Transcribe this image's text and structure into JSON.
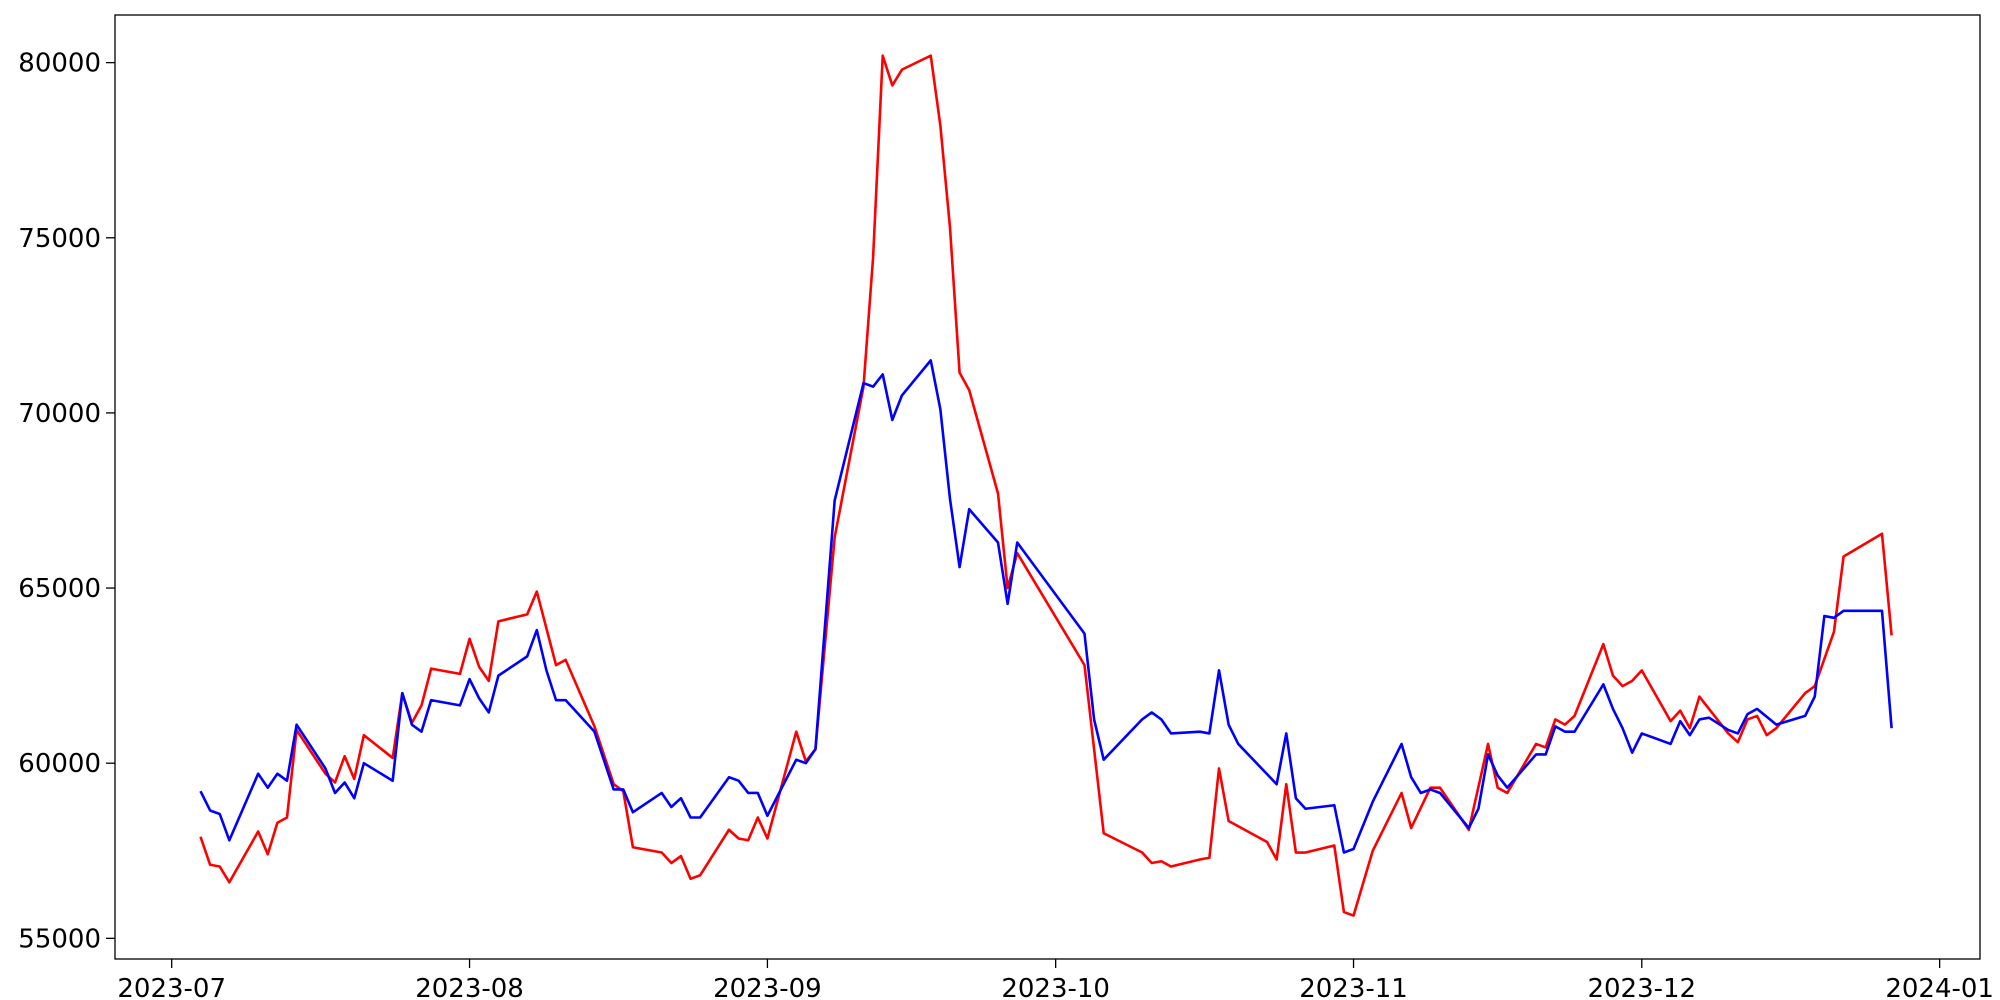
{
  "chart_data": {
    "type": "line",
    "xlim": [
      -5.9,
      188.2
    ],
    "xticks": [
      {
        "value": 0,
        "label": "2023-07"
      },
      {
        "value": 31,
        "label": "2023-08"
      },
      {
        "value": 62,
        "label": "2023-09"
      },
      {
        "value": 92,
        "label": "2023-10"
      },
      {
        "value": 123,
        "label": "2023-11"
      },
      {
        "value": 153,
        "label": "2023-12"
      },
      {
        "value": 184,
        "label": "2024-01"
      }
    ],
    "ylim": [
      54410,
      81360
    ],
    "yticks": [
      55000,
      60000,
      65000,
      70000,
      75000,
      80000
    ],
    "grid": false,
    "series": [
      {
        "color": "#ff0000",
        "x": [
          3,
          4,
          5,
          6,
          9,
          10,
          11,
          12,
          13,
          16,
          17,
          18,
          19,
          20,
          23,
          24,
          25,
          26,
          27,
          30,
          31,
          32,
          33,
          34,
          37,
          38,
          40,
          41,
          44,
          46,
          47,
          48,
          51,
          52,
          53,
          54,
          55,
          58,
          59,
          60,
          61,
          62,
          65,
          66,
          67,
          69,
          72,
          73,
          74,
          75,
          76,
          79,
          80,
          81,
          82,
          83,
          86,
          87,
          88,
          95,
          97,
          101,
          102,
          103,
          104,
          107,
          108,
          109,
          110,
          114,
          115,
          116,
          117,
          118,
          121,
          122,
          123,
          125,
          128,
          129,
          131,
          132,
          135,
          137,
          138,
          139,
          142,
          143,
          144,
          145,
          146,
          149,
          150,
          151,
          152,
          153,
          156,
          157,
          158,
          159,
          162,
          163,
          164,
          165,
          166,
          167,
          170,
          171,
          173,
          174,
          178,
          179
        ],
        "values": [
          57900,
          57100,
          57050,
          56600,
          58050,
          57400,
          58300,
          58450,
          60950,
          59700,
          59450,
          60200,
          59550,
          60800,
          60150,
          62000,
          61150,
          61650,
          62700,
          62550,
          63550,
          62750,
          62350,
          64050,
          64250,
          64900,
          62800,
          62950,
          61050,
          59400,
          59200,
          57600,
          57450,
          57150,
          57350,
          56700,
          56800,
          58100,
          57850,
          57800,
          58450,
          57850,
          60900,
          60050,
          60400,
          66450,
          70750,
          74450,
          80200,
          79350,
          79800,
          80200,
          78200,
          75300,
          71150,
          70650,
          67700,
          65000,
          66000,
          62800,
          58000,
          57450,
          57150,
          57200,
          57050,
          57250,
          57300,
          59850,
          58350,
          57750,
          57250,
          59400,
          57450,
          57450,
          57650,
          55750,
          55650,
          57500,
          59150,
          58150,
          59300,
          59300,
          58100,
          60550,
          59300,
          59150,
          60550,
          60450,
          61250,
          61100,
          61350,
          63400,
          62500,
          62200,
          62350,
          62650,
          61200,
          61500,
          61000,
          61900,
          60850,
          60600,
          61250,
          61350,
          60800,
          61000,
          62000,
          62200,
          63750,
          65900,
          66550,
          63650
        ]
      },
      {
        "color": "#0000ff",
        "x": [
          3,
          4,
          5,
          6,
          9,
          10,
          11,
          12,
          13,
          16,
          17,
          18,
          19,
          20,
          23,
          24,
          25,
          26,
          27,
          30,
          31,
          32,
          33,
          34,
          37,
          38,
          39,
          40,
          41,
          44,
          46,
          47,
          48,
          51,
          52,
          53,
          54,
          55,
          58,
          59,
          60,
          61,
          62,
          65,
          66,
          67,
          69,
          72,
          73,
          74,
          75,
          76,
          79,
          80,
          81,
          82,
          83,
          86,
          87,
          88,
          95,
          96,
          97,
          101,
          102,
          103,
          104,
          107,
          108,
          109,
          110,
          111,
          115,
          116,
          117,
          118,
          121,
          122,
          123,
          125,
          128,
          129,
          130,
          131,
          132,
          135,
          136,
          137,
          138,
          139,
          142,
          143,
          144,
          145,
          146,
          149,
          150,
          151,
          152,
          153,
          156,
          157,
          158,
          159,
          160,
          162,
          163,
          164,
          165,
          167,
          170,
          171,
          172,
          173,
          174,
          178,
          179
        ],
        "values": [
          59200,
          58650,
          58550,
          57800,
          59700,
          59300,
          59700,
          59500,
          61100,
          59850,
          59150,
          59450,
          59000,
          60000,
          59500,
          62000,
          61100,
          60900,
          61800,
          61650,
          62400,
          61850,
          61450,
          62500,
          63050,
          63800,
          62650,
          61800,
          61800,
          60900,
          59250,
          59250,
          58600,
          59150,
          58750,
          59000,
          58450,
          58450,
          59600,
          59500,
          59150,
          59150,
          58500,
          60100,
          60000,
          60400,
          67500,
          70850,
          70750,
          71100,
          69800,
          70500,
          71500,
          70100,
          67550,
          65600,
          67250,
          66300,
          64550,
          66300,
          63700,
          61250,
          60100,
          61250,
          61450,
          61250,
          60850,
          60900,
          60850,
          62650,
          61100,
          60550,
          59400,
          60850,
          59000,
          58700,
          58800,
          57450,
          57550,
          58900,
          60550,
          59600,
          59150,
          59250,
          59150,
          58150,
          58700,
          60250,
          59650,
          59300,
          60250,
          60250,
          61050,
          60900,
          60900,
          62250,
          61550,
          61000,
          60300,
          60850,
          60550,
          61200,
          60800,
          61250,
          61300,
          60950,
          60850,
          61400,
          61550,
          61100,
          61350,
          61900,
          64200,
          64150,
          64350,
          64350,
          61000
        ]
      }
    ]
  }
}
